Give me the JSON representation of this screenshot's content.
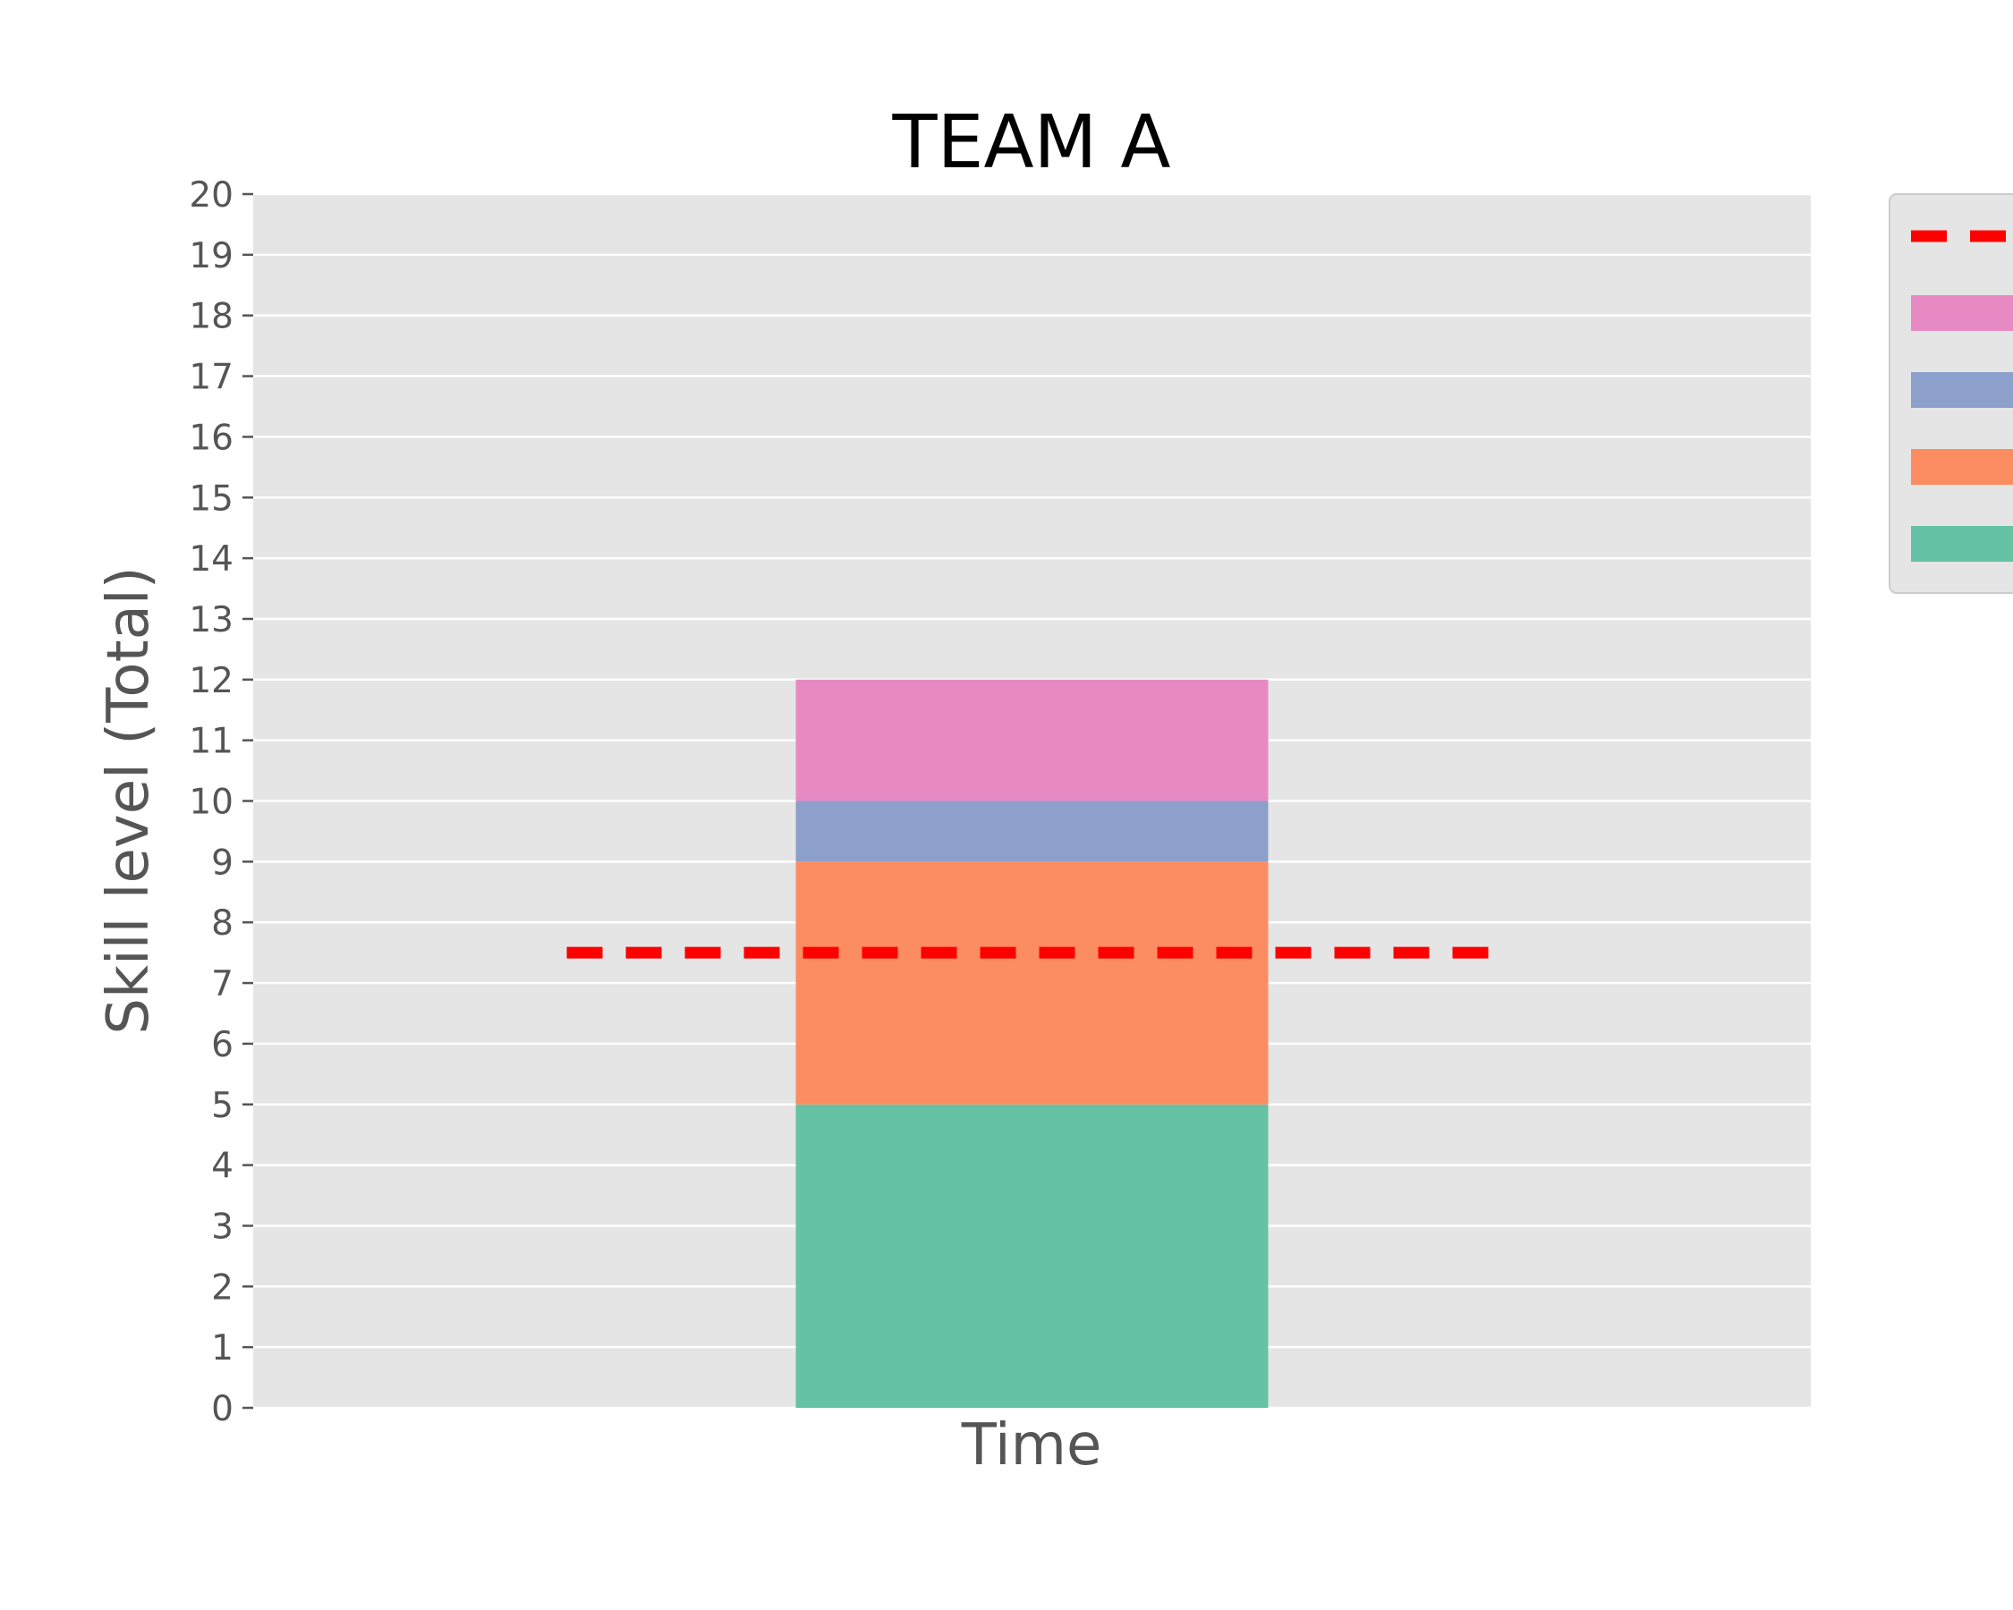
{
  "chart_data": {
    "type": "bar",
    "title": "TEAM A",
    "xlabel": "Time",
    "ylabel": "Skill level (Total)",
    "ylim": [
      0,
      20
    ],
    "yticks": [
      "0",
      "1",
      "2",
      "3",
      "4",
      "5",
      "6",
      "7",
      "8",
      "9",
      "10",
      "11",
      "12",
      "13",
      "14",
      "15",
      "16",
      "17",
      "18",
      "19",
      "20"
    ],
    "grid": true,
    "stacked": true,
    "categories": [
      ""
    ],
    "series": [
      {
        "values": [
          5
        ],
        "color": "#66c2a5"
      },
      {
        "values": [
          4
        ],
        "color": "#fc8d62"
      },
      {
        "values": [
          1
        ],
        "color": "#8da0cb"
      },
      {
        "values": [
          2
        ],
        "color": "#e78ac3"
      }
    ],
    "reference_line": {
      "value": 7.5,
      "style": "dashed",
      "color": "#ff0000"
    },
    "legend": {
      "position": "outside-right",
      "entries": 5
    },
    "colors": {
      "plot_background": "#e5e5e5",
      "grid": "#ffffff",
      "tick_text": "#555555",
      "title_text": "#000000"
    }
  }
}
